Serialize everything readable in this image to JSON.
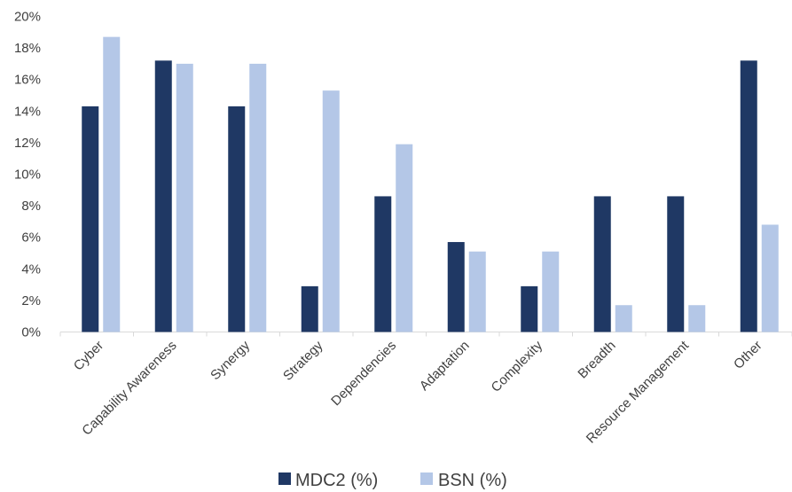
{
  "chart_data": {
    "type": "bar",
    "categories": [
      "Cyber",
      "Capability Awareness",
      "Synergy",
      "Strategy",
      "Dependencies",
      "Adaptation",
      "Complexity",
      "Breadth",
      "Resource Management",
      "Other"
    ],
    "series": [
      {
        "name": "MDC2 (%)",
        "color": "#1f3864",
        "values": [
          14.3,
          17.2,
          14.3,
          2.9,
          8.6,
          5.7,
          2.9,
          8.6,
          8.6,
          17.2
        ]
      },
      {
        "name": "BSN (%)",
        "color": "#b4c7e7",
        "values": [
          18.7,
          17.0,
          17.0,
          15.3,
          11.9,
          5.1,
          5.1,
          1.7,
          1.7,
          6.8
        ]
      }
    ],
    "ylim": [
      0,
      20
    ],
    "yticks": [
      0,
      2,
      4,
      6,
      8,
      10,
      12,
      14,
      16,
      18,
      20
    ],
    "ytick_labels": [
      "0%",
      "2%",
      "4%",
      "6%",
      "8%",
      "10%",
      "12%",
      "14%",
      "16%",
      "18%",
      "20%"
    ],
    "grid": false,
    "legend_position": "bottom",
    "title": "",
    "xlabel": "",
    "ylabel": ""
  }
}
